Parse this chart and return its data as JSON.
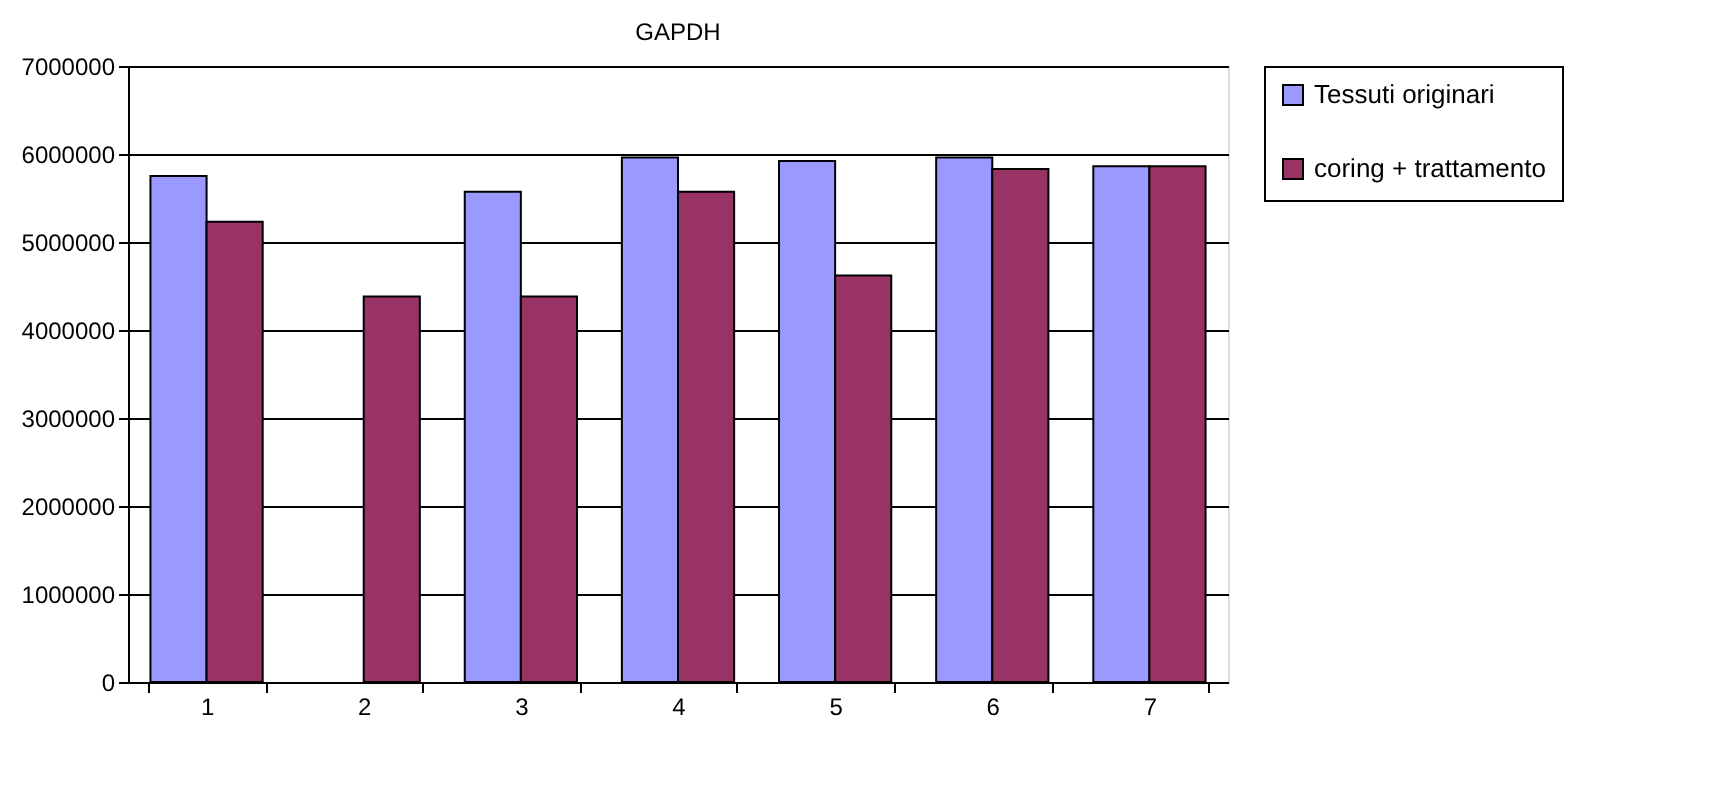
{
  "chart_data": {
    "type": "bar",
    "title": "GAPDH",
    "categories": [
      "1",
      "2",
      "3",
      "4",
      "5",
      "6",
      "7"
    ],
    "series": [
      {
        "name": "Tessuti originari",
        "color": "#9999ff",
        "values": [
          5750000,
          null,
          5570000,
          5960000,
          5920000,
          5960000,
          5860000
        ]
      },
      {
        "name": "coring + trattamento",
        "color": "#993366",
        "values": [
          5230000,
          4380000,
          4380000,
          5570000,
          4620000,
          5830000,
          5860000
        ]
      }
    ],
    "ylim": [
      0,
      7000000
    ],
    "yticks": [
      0,
      1000000,
      2000000,
      3000000,
      4000000,
      5000000,
      6000000,
      7000000
    ],
    "grid": "y",
    "legend": "right"
  }
}
